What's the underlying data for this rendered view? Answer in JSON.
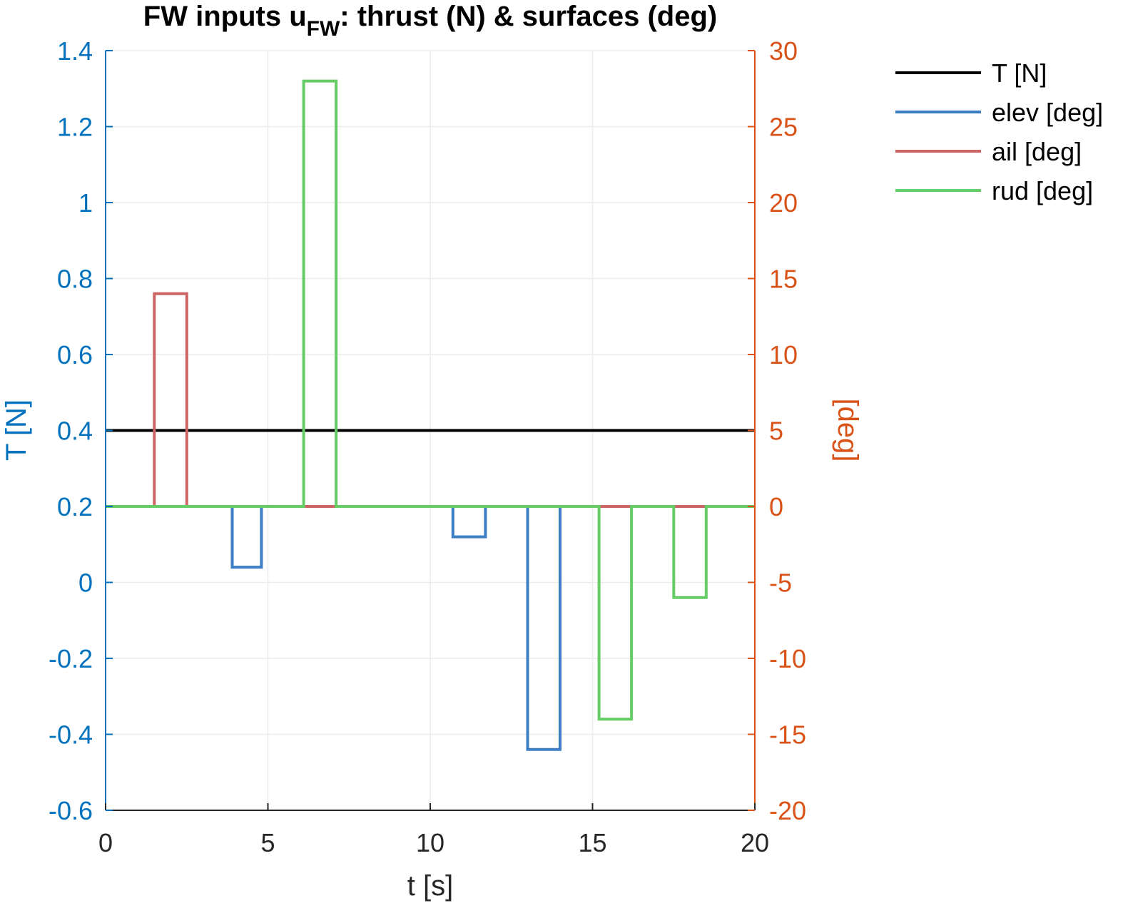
{
  "chart_data": {
    "type": "line",
    "step": true,
    "title": {
      "main": "FW inputs u",
      "subscript": "FW",
      "rest": ": thrust (N) & surfaces (deg)"
    },
    "xlabel": "t [s]",
    "ylabel_left": "T [N]",
    "ylabel_right": "[deg]",
    "xlim": [
      0,
      20
    ],
    "ylim_left": [
      -0.6,
      1.4
    ],
    "ylim_right": [
      -20,
      30
    ],
    "xticks": [
      "0",
      "5",
      "10",
      "15",
      "20"
    ],
    "yticks_left": [
      "-0.6",
      "-0.4",
      "-0.2",
      "0",
      "0.2",
      "0.4",
      "0.6",
      "0.8",
      "1",
      "1.2",
      "1.4"
    ],
    "yticks_right": [
      "-20",
      "-15",
      "-10",
      "-5",
      "0",
      "5",
      "10",
      "15",
      "20",
      "25",
      "30"
    ],
    "grid": true,
    "legend_position": "outside-top-right",
    "colors": {
      "left_axis": "#0072BD",
      "right_axis": "#D95319",
      "T": "#000000",
      "elev": "#3C7DC4",
      "ail": "#CC6666",
      "rud": "#66CC66"
    },
    "series": [
      {
        "name": "T [N]",
        "key": "T",
        "axis": "left",
        "x": [
          0,
          20
        ],
        "y": [
          0.4,
          0.4
        ]
      },
      {
        "name": "elev [deg]",
        "key": "elev",
        "axis": "right",
        "x": [
          0,
          3.9,
          3.9,
          4.8,
          4.8,
          10.7,
          10.7,
          11.7,
          11.7,
          13.0,
          13.0,
          14.0,
          14.0,
          20
        ],
        "y": [
          0,
          0,
          -4,
          -4,
          0,
          0,
          -2,
          -2,
          0,
          0,
          -16,
          -16,
          0,
          0
        ]
      },
      {
        "name": "ail [deg]",
        "key": "ail",
        "axis": "right",
        "x": [
          0,
          1.5,
          1.5,
          2.5,
          2.5,
          20
        ],
        "y": [
          0,
          0,
          14,
          14,
          0,
          0
        ]
      },
      {
        "name": "rud [deg]",
        "key": "rud",
        "axis": "right",
        "x": [
          0,
          6.1,
          6.1,
          7.1,
          7.1,
          15.2,
          15.2,
          16.2,
          16.2,
          17.5,
          17.5,
          18.5,
          18.5,
          20
        ],
        "y": [
          0,
          0,
          28,
          28,
          0,
          0,
          -14,
          -14,
          0,
          0,
          -6,
          -6,
          0,
          0
        ]
      }
    ]
  }
}
